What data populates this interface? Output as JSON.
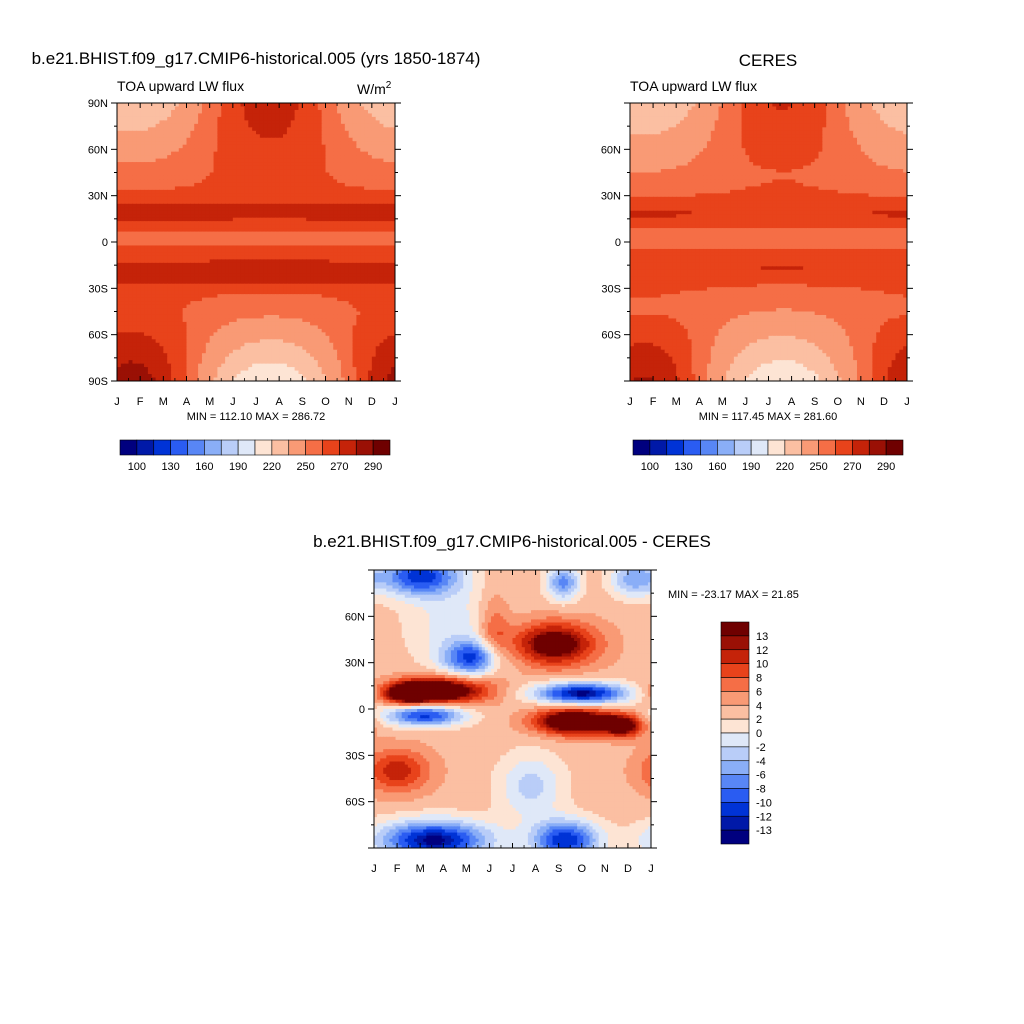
{
  "palettes": {
    "flux": [
      "#00007f",
      "#0019a8",
      "#0033d6",
      "#2a5cf2",
      "#5886f5",
      "#8aaef7",
      "#b9cdf8",
      "#dfe8f8",
      "#fde4d4",
      "#fbbfa2",
      "#f99a75",
      "#f56e46",
      "#e8431b",
      "#c52309",
      "#9a1005",
      "#6f0000"
    ],
    "diff": [
      "#00007f",
      "#0019a8",
      "#0033d6",
      "#2a5cf2",
      "#5886f5",
      "#8aaef7",
      "#b9cdf8",
      "#dfe8f8",
      "#fde4d4",
      "#fbbfa2",
      "#f99a75",
      "#f56e46",
      "#e8431b",
      "#c52309",
      "#9a1005",
      "#6f0000"
    ]
  },
  "chart_data": [
    {
      "type": "heatmap",
      "title": "b.e21.BHIST.f09_g17.CMIP6-historical.005 (yrs 1850-1874)",
      "subtitle_left": "TOA upward LW flux",
      "units_base": "W/m",
      "units_exp": "2",
      "months": [
        "J",
        "F",
        "M",
        "A",
        "M",
        "J",
        "J",
        "A",
        "S",
        "O",
        "N",
        "D",
        "J"
      ],
      "lat_ticks": [
        "90N",
        "60N",
        "30N",
        "0",
        "30S",
        "60S",
        "90S"
      ],
      "xlim": [
        0,
        12
      ],
      "ylim": [
        -90,
        90
      ],
      "stats": "MIN = 112.10 MAX = 286.72",
      "colorbar_labels": [
        "100",
        "130",
        "160",
        "190",
        "220",
        "250",
        "270",
        "290"
      ],
      "field": "model"
    },
    {
      "type": "heatmap",
      "title": "CERES",
      "subtitle_left": "TOA upward LW flux",
      "months": [
        "J",
        "F",
        "M",
        "A",
        "M",
        "J",
        "J",
        "A",
        "S",
        "O",
        "N",
        "D",
        "J"
      ],
      "lat_ticks": [
        "60N",
        "30N",
        "0",
        "30S",
        "60S"
      ],
      "xlim": [
        0,
        12
      ],
      "ylim": [
        -90,
        90
      ],
      "stats": "MIN = 117.45 MAX = 281.60",
      "colorbar_labels": [
        "100",
        "130",
        "160",
        "190",
        "220",
        "250",
        "270",
        "290"
      ],
      "field": "obs"
    },
    {
      "type": "heatmap",
      "title": "b.e21.BHIST.f09_g17.CMIP6-historical.005 - CERES",
      "months": [
        "J",
        "F",
        "M",
        "A",
        "M",
        "J",
        "J",
        "A",
        "S",
        "O",
        "N",
        "D",
        "J"
      ],
      "lat_ticks": [
        "60N",
        "30N",
        "0",
        "30S",
        "60S"
      ],
      "xlim": [
        0,
        12
      ],
      "ylim": [
        -90,
        90
      ],
      "stats": "MIN = -23.17 MAX =  21.85",
      "colorbar_labels": [
        "13",
        "12",
        "10",
        "8",
        "6",
        "4",
        "2",
        "0",
        "-2",
        "-4",
        "-6",
        "-8",
        "-10",
        "-12",
        "-13"
      ],
      "field": "diff"
    }
  ]
}
